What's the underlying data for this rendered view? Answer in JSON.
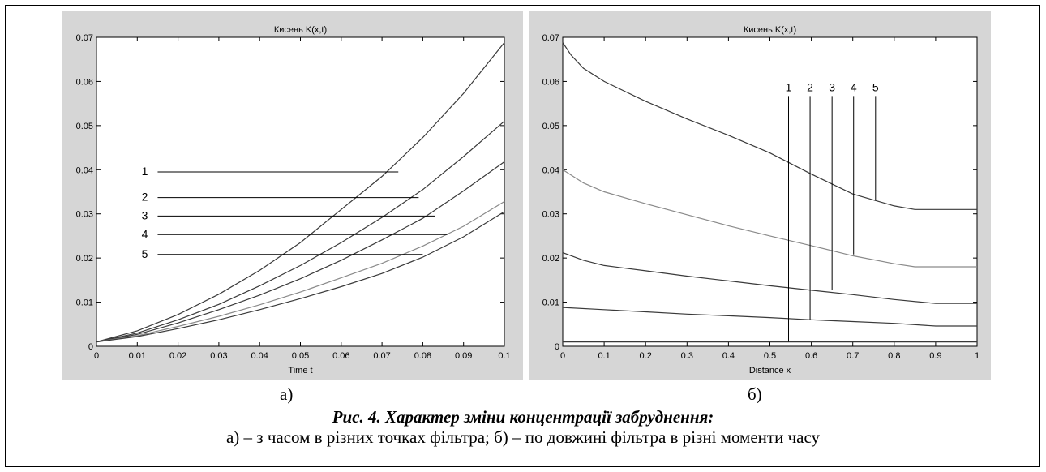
{
  "figure": {
    "caption_title": "Рис. 4. Характер зміни концентрації забруднення:",
    "caption_desc": "а) – з часом в різних точках фільтра; б) – по довжині фільтра в різні моменти часу"
  },
  "chart_data": [
    {
      "type": "line",
      "panel_label": "а)",
      "title": "Кисень K(x,t)",
      "xlabel": "Time t",
      "ylabel": "",
      "xlim": [
        0,
        0.1
      ],
      "ylim": [
        0,
        0.07
      ],
      "xticks": [
        "0",
        "0.01",
        "0.02",
        "0.03",
        "0.04",
        "0.05",
        "0.06",
        "0.07",
        "0.08",
        "0.09",
        "0.1"
      ],
      "yticks": [
        "0",
        "0.01",
        "0.02",
        "0.03",
        "0.04",
        "0.05",
        "0.06",
        "0.07"
      ],
      "grid": false,
      "series": [
        {
          "x": [
            0,
            0.01,
            0.02,
            0.03,
            0.04,
            0.05,
            0.06,
            0.07,
            0.08,
            0.09,
            0.1
          ],
          "y": [
            0.001,
            0.0035,
            0.0072,
            0.0118,
            0.0172,
            0.0235,
            0.031,
            0.0385,
            0.0473,
            0.0573,
            0.0688
          ]
        },
        {
          "x": [
            0,
            0.01,
            0.02,
            0.03,
            0.04,
            0.05,
            0.06,
            0.07,
            0.08,
            0.09,
            0.1
          ],
          "y": [
            0.001,
            0.003,
            0.006,
            0.0095,
            0.0137,
            0.0183,
            0.0235,
            0.0292,
            0.0355,
            0.043,
            0.051
          ]
        },
        {
          "x": [
            0,
            0.01,
            0.02,
            0.03,
            0.04,
            0.05,
            0.06,
            0.07,
            0.08,
            0.09,
            0.1
          ],
          "y": [
            0.001,
            0.0027,
            0.0053,
            0.0083,
            0.0116,
            0.0153,
            0.0195,
            0.0241,
            0.029,
            0.0352,
            0.0418
          ]
        },
        {
          "x": [
            0,
            0.01,
            0.02,
            0.03,
            0.04,
            0.05,
            0.06,
            0.07,
            0.08,
            0.09,
            0.1
          ],
          "y": [
            0.001,
            0.0024,
            0.0045,
            0.0068,
            0.0094,
            0.0123,
            0.0155,
            0.0188,
            0.0227,
            0.0272,
            0.0328
          ]
        },
        {
          "x": [
            0,
            0.01,
            0.02,
            0.03,
            0.04,
            0.05,
            0.06,
            0.07,
            0.08,
            0.09,
            0.1
          ],
          "y": [
            0.001,
            0.0022,
            0.004,
            0.006,
            0.0083,
            0.0108,
            0.0135,
            0.0165,
            0.0202,
            0.0248,
            0.0305
          ]
        }
      ],
      "annotations": [
        {
          "text": "1",
          "y": 0.0395,
          "x_end": 0.074
        },
        {
          "text": "2",
          "y": 0.0337,
          "x_end": 0.079
        },
        {
          "text": "3",
          "y": 0.0295,
          "x_end": 0.083
        },
        {
          "text": "4",
          "y": 0.0253,
          "x_end": 0.086
        },
        {
          "text": "5",
          "y": 0.0208,
          "x_end": 0.08
        }
      ]
    },
    {
      "type": "line",
      "panel_label": "б)",
      "title": "Кисень K(x,t)",
      "xlabel": "Distance x",
      "ylabel": "",
      "xlim": [
        0,
        1
      ],
      "ylim": [
        0,
        0.07
      ],
      "xticks": [
        "0",
        "0.1",
        "0.2",
        "0.3",
        "0.4",
        "0.5",
        "0.6",
        "0.7",
        "0.8",
        "0.9",
        "1"
      ],
      "yticks": [
        "0",
        "0.01",
        "0.02",
        "0.03",
        "0.04",
        "0.05",
        "0.06",
        "0.07"
      ],
      "grid": false,
      "series": [
        {
          "x": [
            0,
            0.02,
            0.05,
            0.1,
            0.2,
            0.3,
            0.4,
            0.5,
            0.6,
            0.7,
            0.8,
            0.85,
            0.9,
            1
          ],
          "y": [
            0.0688,
            0.066,
            0.063,
            0.06,
            0.0555,
            0.0515,
            0.0478,
            0.0438,
            0.039,
            0.0345,
            0.0318,
            0.031,
            0.031,
            0.031
          ]
        },
        {
          "x": [
            0,
            0.05,
            0.1,
            0.2,
            0.3,
            0.4,
            0.5,
            0.6,
            0.7,
            0.8,
            0.85,
            0.9,
            1
          ],
          "y": [
            0.04,
            0.037,
            0.035,
            0.0323,
            0.0298,
            0.0273,
            0.025,
            0.0228,
            0.0205,
            0.0187,
            0.018,
            0.018,
            0.018
          ]
        },
        {
          "x": [
            0,
            0.05,
            0.1,
            0.2,
            0.3,
            0.4,
            0.5,
            0.6,
            0.7,
            0.8,
            0.9,
            1
          ],
          "y": [
            0.0212,
            0.0195,
            0.0183,
            0.0171,
            0.0159,
            0.0148,
            0.0137,
            0.0127,
            0.0117,
            0.0106,
            0.0097,
            0.0097
          ]
        },
        {
          "x": [
            0,
            0.1,
            0.2,
            0.3,
            0.4,
            0.5,
            0.6,
            0.7,
            0.8,
            0.9,
            1
          ],
          "y": [
            0.0088,
            0.0083,
            0.0078,
            0.0073,
            0.0069,
            0.0065,
            0.006,
            0.0056,
            0.0052,
            0.0046,
            0.0046
          ]
        },
        {
          "x": [
            0,
            1
          ],
          "y": [
            0.001,
            0.001
          ]
        }
      ],
      "annotations": [
        {
          "text": "1",
          "x": 0.545,
          "y_end": 0.001
        },
        {
          "text": "2",
          "x": 0.597,
          "y_end": 0.006
        },
        {
          "text": "3",
          "x": 0.65,
          "y_end": 0.0127
        },
        {
          "text": "4",
          "x": 0.702,
          "y_end": 0.0208
        },
        {
          "text": "5",
          "x": 0.755,
          "y_end": 0.033
        }
      ],
      "annotation_label_y": 0.0578
    }
  ]
}
